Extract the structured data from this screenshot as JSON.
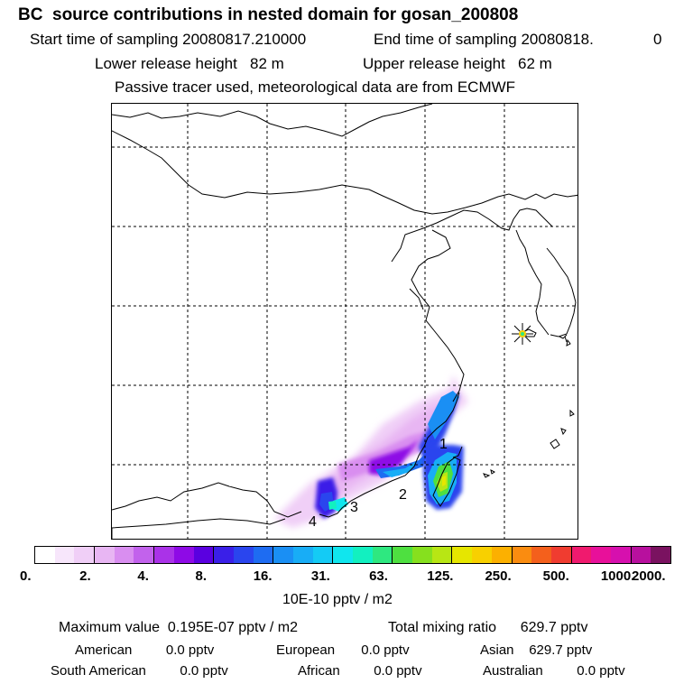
{
  "header": {
    "title": "BC  source contributions in nested domain for gosan_200808",
    "start_label": "Start time of sampling 20080817.210000",
    "end_label": "End time of sampling 20080818.",
    "end_value": "0",
    "lower_label": "Lower release height   82 m",
    "upper_label": "Upper release height   62 m",
    "tracer_note": "Passive tracer used, meteorological data are from ECMWF"
  },
  "map": {
    "region_labels": [
      "1",
      "2",
      "3",
      "4"
    ],
    "receptor_marker": "star-marker"
  },
  "colorbar": {
    "colors": [
      "#ffffff",
      "#f7e6fb",
      "#f0cff7",
      "#e8b6f3",
      "#d98ef0",
      "#c262ec",
      "#aa32e8",
      "#8e0ae6",
      "#5a00e0",
      "#3a1fe8",
      "#2a45ee",
      "#1e6cf2",
      "#1a8ff4",
      "#18adf6",
      "#14cbf5",
      "#10e6ee",
      "#12f0c0",
      "#2ee880",
      "#4ee040",
      "#86e01e",
      "#b8e614",
      "#e6e600",
      "#f8d000",
      "#fcb000",
      "#fa8c10",
      "#f4601c",
      "#f03c30",
      "#f01a6e",
      "#e8109a",
      "#d610ae",
      "#b8109e",
      "#7a1260"
    ],
    "ticks": [
      "0.",
      "2.",
      "4.",
      "8.",
      "16.",
      "31.",
      "63.",
      "125.",
      "250.",
      "500.",
      "1000.",
      "2000."
    ],
    "unit_label": "10E-10 pptv / m2"
  },
  "stats": {
    "max_label": "Maximum value  0.195E-07 pptv / m2",
    "total_label": "Total mixing ratio      629.7 pptv",
    "american": "American         0.0 pptv",
    "european": "European       0.0 pptv",
    "asian": "Asian    629.7 pptv",
    "south_american": "South American         0.0 pptv",
    "african": "African         0.0 pptv",
    "australian": "Australian         0.0 pptv"
  }
}
